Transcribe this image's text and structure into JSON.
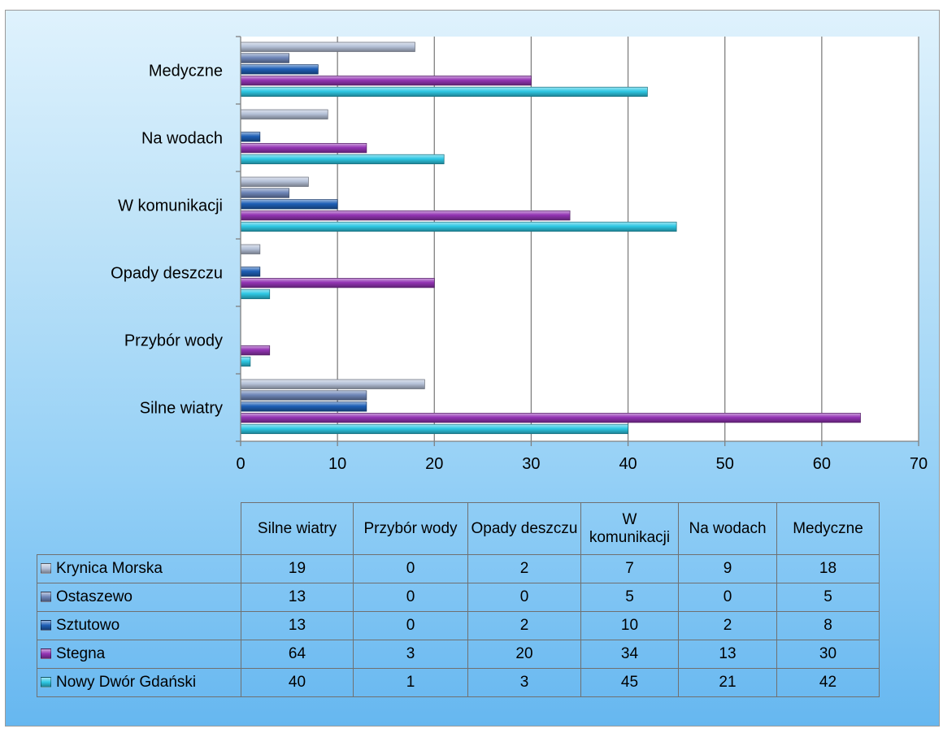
{
  "chart_data": {
    "type": "bar",
    "orientation": "horizontal",
    "categories": [
      "Silne wiatry",
      "Przybór wody",
      "Opady deszczu",
      "W komunikacji",
      "Na wodach",
      "Medyczne"
    ],
    "table_headers": [
      "Silne wiatry",
      "Przybór wody",
      "Opady deszczu",
      "W komunikacji",
      "Na wodach",
      "Medyczne"
    ],
    "series": [
      {
        "name": "Krynica Morska",
        "color": "#b5c1d8",
        "values": [
          19,
          0,
          2,
          7,
          9,
          18
        ]
      },
      {
        "name": "Ostaszewo",
        "color": "#6e86b8",
        "values": [
          13,
          0,
          0,
          5,
          0,
          5
        ]
      },
      {
        "name": "Sztutowo",
        "color": "#1e5fb6",
        "values": [
          13,
          0,
          2,
          10,
          2,
          8
        ]
      },
      {
        "name": "Stegna",
        "color": "#9334b4",
        "values": [
          64,
          3,
          20,
          34,
          13,
          30
        ]
      },
      {
        "name": "Nowy Dwór Gdański",
        "color": "#2ec8e4",
        "values": [
          40,
          1,
          3,
          45,
          21,
          42
        ]
      }
    ],
    "xlim": [
      0,
      70
    ],
    "xticks": [
      0,
      10,
      20,
      30,
      40,
      50,
      60,
      70
    ],
    "grid": true,
    "legend": "data-table-below"
  }
}
